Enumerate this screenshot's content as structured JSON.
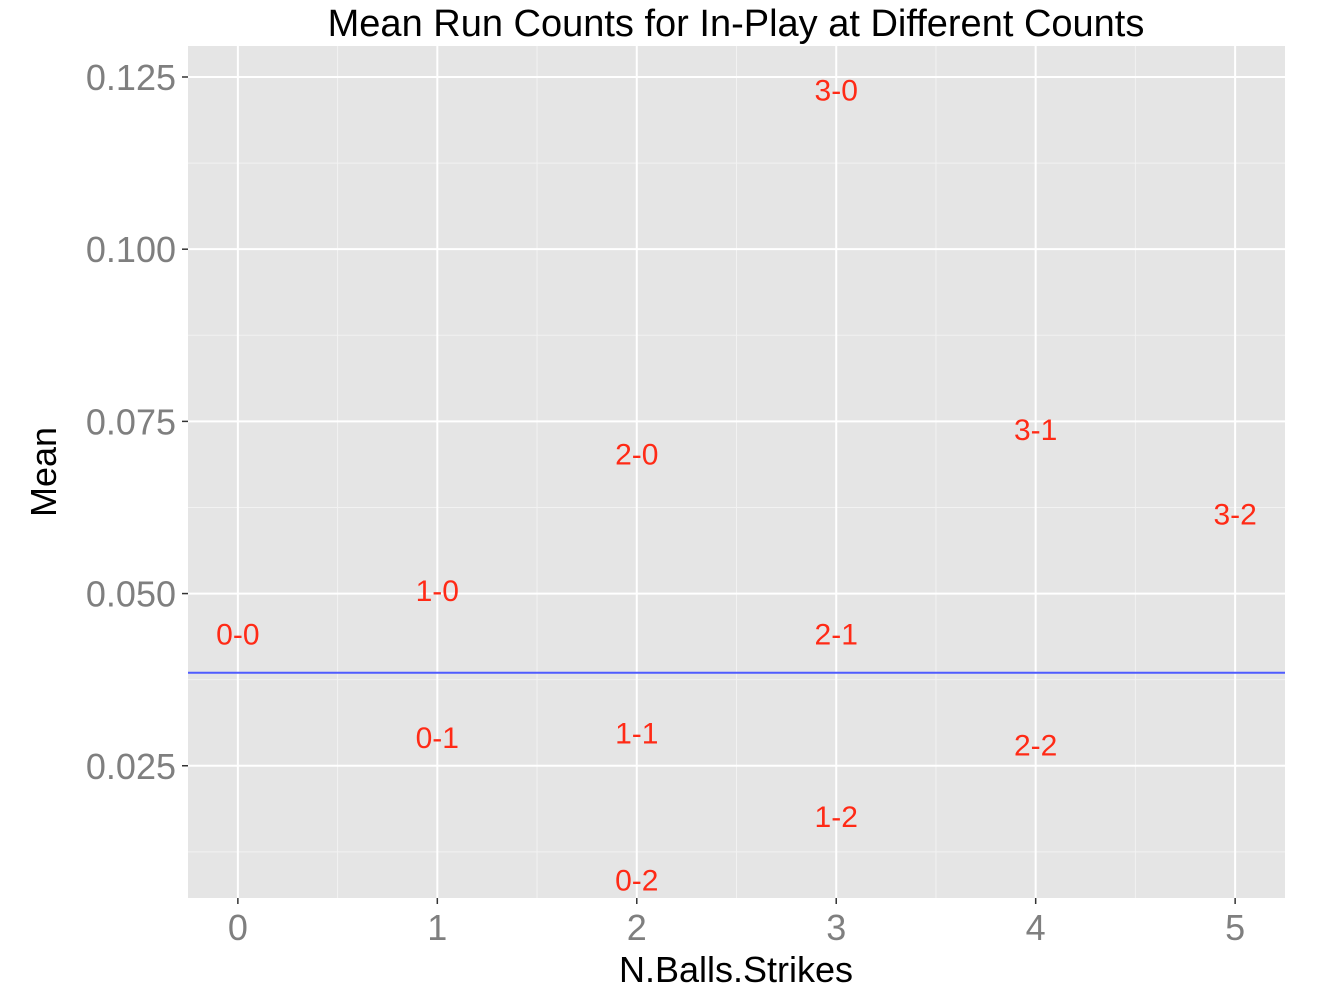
{
  "chart_data": {
    "type": "scatter",
    "title": "Mean Run Counts for In-Play at Different Counts",
    "xlabel": "N.Balls.Strikes",
    "ylabel": "Mean",
    "xlim": [
      -0.25,
      5.25
    ],
    "ylim": [
      0.0058,
      0.1295
    ],
    "x_ticks": [
      "0",
      "1",
      "2",
      "3",
      "4",
      "5"
    ],
    "y_ticks": [
      "0.025",
      "0.050",
      "0.075",
      "0.100",
      "0.125"
    ],
    "grid": true,
    "legend": "none",
    "points": [
      {
        "label": "0-0",
        "x": 0,
        "y": 0.0442
      },
      {
        "label": "1-0",
        "x": 1,
        "y": 0.0505
      },
      {
        "label": "0-1",
        "x": 1,
        "y": 0.0292
      },
      {
        "label": "2-0",
        "x": 2,
        "y": 0.0703
      },
      {
        "label": "1-1",
        "x": 2,
        "y": 0.0298
      },
      {
        "label": "0-2",
        "x": 2,
        "y": 0.0085
      },
      {
        "label": "3-0",
        "x": 3,
        "y": 0.1232
      },
      {
        "label": "2-1",
        "x": 3,
        "y": 0.0442
      },
      {
        "label": "1-2",
        "x": 3,
        "y": 0.0177
      },
      {
        "label": "3-1",
        "x": 4,
        "y": 0.0739
      },
      {
        "label": "2-2",
        "x": 4,
        "y": 0.0281
      },
      {
        "label": "3-2",
        "x": 5,
        "y": 0.0616
      }
    ],
    "reference_line": {
      "y": 0.0385,
      "color": "#4f5cff"
    },
    "colors": {
      "panel": "#e5e5e5",
      "grid_major": "#ffffff",
      "grid_minor": "#f2f2f2",
      "point_label": "#ff2a16",
      "tick_label": "#7f7f7f"
    }
  }
}
